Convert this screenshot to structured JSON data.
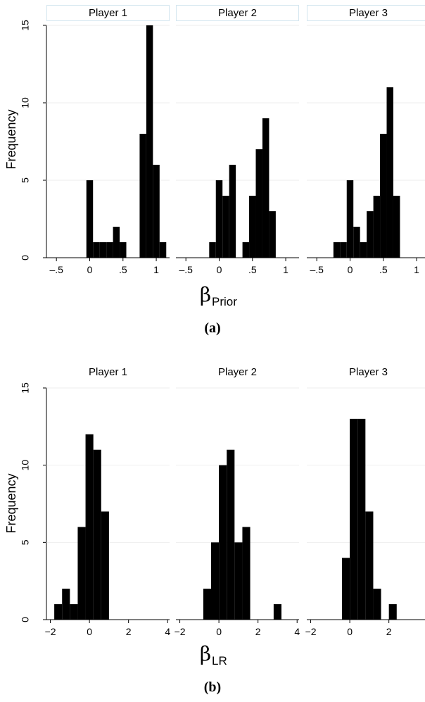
{
  "chart_data": [
    {
      "type": "bar",
      "panel_tag": "(a)",
      "ylabel": "Frequency",
      "xlabel_symbol": "β",
      "xlabel_subscript": "Prior",
      "ylim": [
        0,
        15
      ],
      "yticks": [
        "0",
        "5",
        "10",
        "15"
      ],
      "xlim": [
        -0.65,
        1.2
      ],
      "xticks": [
        {
          "value": -0.5,
          "label": "–.5"
        },
        {
          "value": 0,
          "label": "0"
        },
        {
          "value": 0.5,
          "label": ".5"
        },
        {
          "value": 1,
          "label": "1"
        }
      ],
      "bin_width": 0.1,
      "strip_boxes": true,
      "grid": true,
      "facets": [
        {
          "title": "Player 1",
          "bins": [
            {
              "x0": -0.05,
              "count": 5
            },
            {
              "x0": 0.05,
              "count": 1
            },
            {
              "x0": 0.15,
              "count": 1
            },
            {
              "x0": 0.25,
              "count": 1
            },
            {
              "x0": 0.35,
              "count": 2
            },
            {
              "x0": 0.45,
              "count": 1
            },
            {
              "x0": 0.55,
              "count": 0
            },
            {
              "x0": 0.65,
              "count": 0
            },
            {
              "x0": 0.75,
              "count": 8
            },
            {
              "x0": 0.85,
              "count": 15
            },
            {
              "x0": 0.95,
              "count": 6
            },
            {
              "x0": 1.05,
              "count": 1
            }
          ]
        },
        {
          "title": "Player 2",
          "bins": [
            {
              "x0": -0.15,
              "count": 1
            },
            {
              "x0": -0.05,
              "count": 5
            },
            {
              "x0": 0.05,
              "count": 4
            },
            {
              "x0": 0.15,
              "count": 6
            },
            {
              "x0": 0.25,
              "count": 0
            },
            {
              "x0": 0.35,
              "count": 1
            },
            {
              "x0": 0.45,
              "count": 4
            },
            {
              "x0": 0.55,
              "count": 7
            },
            {
              "x0": 0.65,
              "count": 9
            },
            {
              "x0": 0.75,
              "count": 3
            }
          ]
        },
        {
          "title": "Player 3",
          "bins": [
            {
              "x0": -0.25,
              "count": 1
            },
            {
              "x0": -0.15,
              "count": 1
            },
            {
              "x0": -0.05,
              "count": 5
            },
            {
              "x0": 0.05,
              "count": 2
            },
            {
              "x0": 0.15,
              "count": 1
            },
            {
              "x0": 0.25,
              "count": 3
            },
            {
              "x0": 0.35,
              "count": 4
            },
            {
              "x0": 0.45,
              "count": 8
            },
            {
              "x0": 0.55,
              "count": 11
            },
            {
              "x0": 0.65,
              "count": 4
            }
          ]
        }
      ]
    },
    {
      "type": "bar",
      "panel_tag": "(b)",
      "ylabel": "Frequency",
      "xlabel_symbol": "β",
      "xlabel_subscript": "LR",
      "ylim": [
        0,
        15
      ],
      "yticks": [
        "0",
        "5",
        "10",
        "15"
      ],
      "xlim": [
        -2.2,
        4.1
      ],
      "xticks": [
        {
          "value": -2,
          "label": "−2"
        },
        {
          "value": 0,
          "label": "0"
        },
        {
          "value": 2,
          "label": "2"
        },
        {
          "value": 4,
          "label": "4"
        }
      ],
      "bin_width": 0.4,
      "strip_boxes": false,
      "grid": true,
      "facets": [
        {
          "title": "Player 1",
          "bins": [
            {
              "x0": -1.8,
              "count": 1
            },
            {
              "x0": -1.4,
              "count": 2
            },
            {
              "x0": -1.0,
              "count": 1
            },
            {
              "x0": -0.6,
              "count": 6
            },
            {
              "x0": -0.2,
              "count": 12
            },
            {
              "x0": 0.2,
              "count": 11
            },
            {
              "x0": 0.6,
              "count": 7
            }
          ]
        },
        {
          "title": "Player 2",
          "bins": [
            {
              "x0": -0.8,
              "count": 2
            },
            {
              "x0": -0.4,
              "count": 5
            },
            {
              "x0": 0.0,
              "count": 10
            },
            {
              "x0": 0.4,
              "count": 11
            },
            {
              "x0": 0.8,
              "count": 5
            },
            {
              "x0": 1.2,
              "count": 6
            },
            {
              "x0": 1.6,
              "count": 0
            },
            {
              "x0": 2.0,
              "count": 0
            },
            {
              "x0": 2.4,
              "count": 0
            },
            {
              "x0": 2.8,
              "count": 1
            }
          ]
        },
        {
          "title": "Player 3",
          "bins": [
            {
              "x0": -0.4,
              "count": 4
            },
            {
              "x0": 0.0,
              "count": 13
            },
            {
              "x0": 0.4,
              "count": 13
            },
            {
              "x0": 0.8,
              "count": 7
            },
            {
              "x0": 1.2,
              "count": 2
            },
            {
              "x0": 1.6,
              "count": 0
            },
            {
              "x0": 2.0,
              "count": 1
            }
          ]
        }
      ]
    }
  ]
}
